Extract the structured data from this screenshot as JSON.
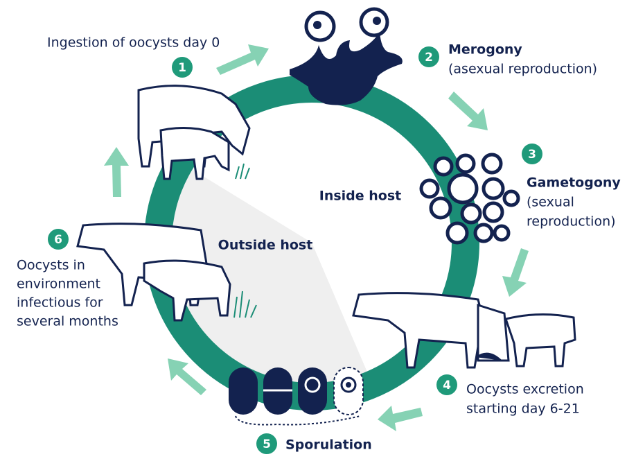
{
  "center_labels": {
    "inside": "Inside host",
    "outside": "Outside host"
  },
  "steps": [
    {
      "number": "1",
      "lines": [
        "Ingestion of oocysts day 0"
      ]
    },
    {
      "number": "2",
      "title": "Merogony",
      "lines": [
        "(asexual reproduction)"
      ]
    },
    {
      "number": "3",
      "title": "Gametogony",
      "lines": [
        "(sexual",
        "reproduction)"
      ]
    },
    {
      "number": "4",
      "lines": [
        "Oocysts excretion",
        "starting day 6-21"
      ]
    },
    {
      "number": "5",
      "title": "Sporulation"
    },
    {
      "number": "6",
      "lines": [
        "Oocysts in",
        "environment",
        "infectious for",
        "several months"
      ]
    }
  ]
}
